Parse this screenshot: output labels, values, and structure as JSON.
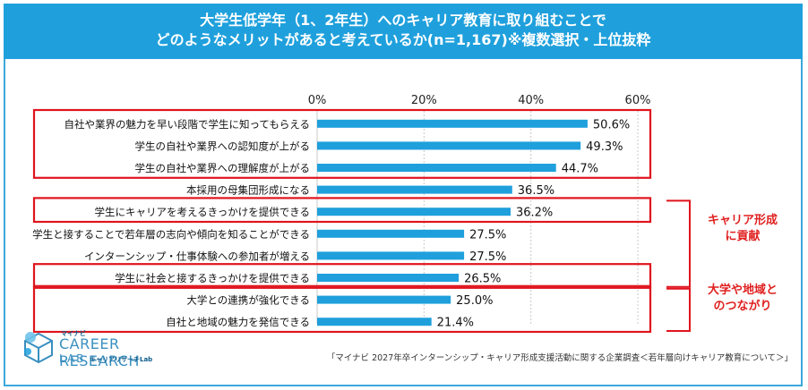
{
  "title": {
    "line1": "大学生低学年（1、2年生）へのキャリア教育に取り組むことで",
    "line2": "どのようなメリットがあると考えているか(n=1,167)※複数選択・上位抜粋"
  },
  "chart_data": {
    "type": "bar",
    "orientation": "horizontal",
    "categories": [
      "自社や業界の魅力を早い段階で学生に知ってもらえる",
      "学生の自社や業界への認知度が上がる",
      "学生の自社や業界への理解度が上がる",
      "本採用の母集団形成になる",
      "学生にキャリアを考えるきっかけを提供できる",
      "学生と接することで若年層の志向や傾向を知ることができる",
      "インターンシップ・仕事体験への参加者が増える",
      "学生に社会と接するきっかけを提供できる",
      "大学との連携が強化できる",
      "自社と地域の魅力を発信できる"
    ],
    "values": [
      50.6,
      49.3,
      44.7,
      36.5,
      36.2,
      27.5,
      27.5,
      26.5,
      25.0,
      21.4
    ],
    "value_labels": [
      "50.6%",
      "49.3%",
      "44.7%",
      "36.5%",
      "36.2%",
      "27.5%",
      "27.5%",
      "26.5%",
      "25.0%",
      "21.4%"
    ],
    "xlim": [
      0,
      60
    ],
    "ticks": [
      {
        "value": 0,
        "label": "0%"
      },
      {
        "value": 20,
        "label": "20%"
      },
      {
        "value": 40,
        "label": "40%"
      },
      {
        "value": 60,
        "label": "60%"
      }
    ],
    "grid": true,
    "bar_color": "#1fa0dc",
    "highlight_color": "#e0141e",
    "highlight_groups": [
      {
        "rows": [
          0,
          2
        ],
        "label": ""
      },
      {
        "rows": [
          4,
          4
        ],
        "label": ""
      },
      {
        "rows": [
          7,
          7
        ],
        "label": ""
      },
      {
        "rows": [
          8,
          9
        ],
        "label": ""
      }
    ],
    "brackets": [
      {
        "rows": [
          4,
          7
        ],
        "label_lines": [
          "キャリア形成",
          "に貢献"
        ]
      },
      {
        "rows": [
          8,
          9
        ],
        "label_lines": [
          "大学や地域と",
          "のつながり"
        ]
      }
    ]
  },
  "source": "「マイナビ 2027年卒インターンシップ・キャリア形成支援活動に関する企業調査＜若年層向けキャリア教育について＞」",
  "logo": {
    "brand": "マイナビ",
    "name_line1": "CAREER RESEARCH",
    "name_line2": "LAB",
    "sub": "キャリアリサーチLab"
  }
}
